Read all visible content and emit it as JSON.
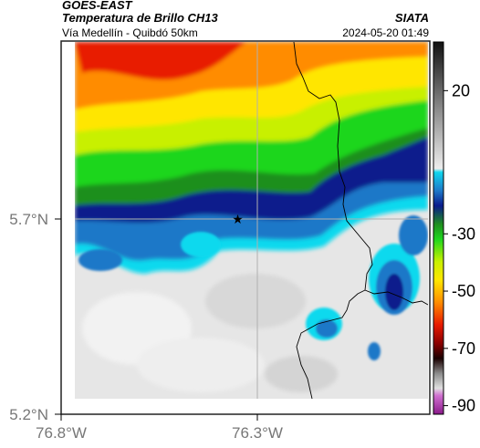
{
  "header": {
    "satellite": "GOES-EAST",
    "product": "Temperatura de Brillo CH13",
    "location": "Vía Medellín - Quibdó 50km",
    "organization": "SIATA",
    "timestamp": "2024-05-20 01:49"
  },
  "axes": {
    "lat_ticks": [
      {
        "value": 5.7,
        "label": "5.7°N"
      },
      {
        "value": 5.2,
        "label": "5.2°N"
      }
    ],
    "lon_ticks": [
      {
        "value": -76.8,
        "label": "76.8°W"
      },
      {
        "value": -76.3,
        "label": "76.3°W"
      }
    ],
    "gridlines": "on",
    "grid_color": "#b0b0b0"
  },
  "colorbar": {
    "placement": "right",
    "ticks": [
      "20",
      "-30",
      "-50",
      "-70",
      "-90"
    ],
    "tick_values": [
      20,
      -30,
      -50,
      -70,
      -90
    ],
    "range": [
      -93,
      37
    ]
  },
  "marker": {
    "icon": "star-icon",
    "lat": 5.7,
    "lon": -76.35
  },
  "colors": {
    "warm_surface": "#e8e8e8",
    "cold_cloud_cyan": "#0fd9ee",
    "cold_cloud_blue": "#1e78c8",
    "deep_convection_navy": "#0a1a8c",
    "coastline": "#000000"
  }
}
